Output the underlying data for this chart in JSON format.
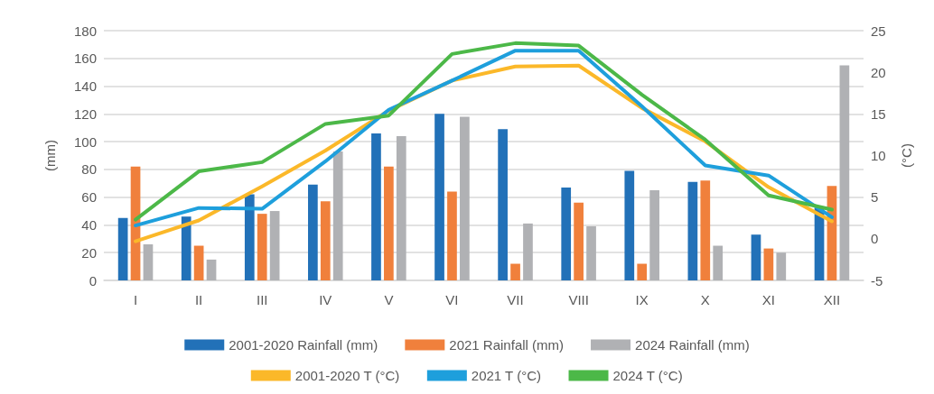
{
  "chart_data": {
    "type": "bar",
    "ylabel": "(mm)",
    "y2label": "(°C)",
    "categories": [
      "I",
      "II",
      "III",
      "IV",
      "V",
      "VI",
      "VII",
      "VIII",
      "IX",
      "X",
      "XI",
      "XII"
    ],
    "series": [
      {
        "name": "2001-2020 Rainfall (mm)",
        "color": "#2271b8",
        "values": [
          45,
          46,
          62,
          69,
          106,
          120,
          109,
          67,
          79,
          71,
          33,
          52
        ]
      },
      {
        "name": "2021 Rainfall (mm)",
        "color": "#f0803c",
        "values": [
          82,
          25,
          48,
          57,
          82,
          64,
          12,
          56,
          12,
          72,
          23,
          68
        ]
      },
      {
        "name": "2024 Rainfall (mm)",
        "color": "#b0b1b4",
        "values": [
          26,
          15,
          50,
          93,
          104,
          118,
          41,
          39,
          65,
          25,
          20,
          155
        ]
      },
      {
        "name": "2001-2020 T (°C)",
        "type": "line",
        "axis": "y2",
        "color": "#fbb829",
        "values": [
          -0.3,
          2.2,
          6.3,
          10.6,
          15.4,
          19.0,
          20.7,
          20.8,
          15.7,
          11.7,
          6.2,
          2.1
        ]
      },
      {
        "name": "2021 T (°C)",
        "type": "line",
        "axis": "y2",
        "color": "#1e9fdc",
        "values": [
          1.6,
          3.7,
          3.6,
          9.3,
          15.5,
          19.0,
          22.6,
          22.6,
          15.9,
          8.8,
          7.6,
          2.6
        ]
      },
      {
        "name": "2024 T (°C)",
        "type": "line",
        "axis": "y2",
        "color": "#4cb848",
        "values": [
          2.3,
          8.1,
          9.2,
          13.8,
          14.8,
          22.2,
          23.5,
          23.2,
          17.3,
          11.9,
          5.2,
          3.5
        ]
      }
    ],
    "ylim": [
      0,
      180
    ],
    "yticks": [
      0,
      20,
      40,
      60,
      80,
      100,
      120,
      140,
      160,
      180
    ],
    "y2lim": [
      -5,
      25
    ],
    "y2ticks": [
      -5,
      0,
      5,
      10,
      15,
      20,
      25
    ],
    "grid": "y",
    "legend": "bottom",
    "marker": "none",
    "line_style": "solid"
  }
}
